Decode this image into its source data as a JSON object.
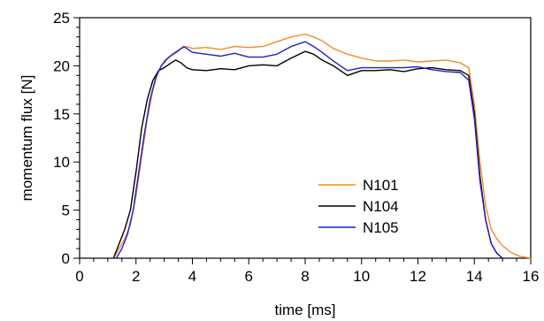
{
  "chart_data": {
    "type": "line",
    "xlabel": "time [ms]",
    "ylabel": "momentum flux [N]",
    "xlim": [
      0,
      16
    ],
    "ylim": [
      0,
      25
    ],
    "xticks": [
      0,
      2,
      4,
      6,
      8,
      10,
      12,
      14,
      16
    ],
    "yticks": [
      0,
      5,
      10,
      15,
      20,
      25
    ],
    "xtick_labels": [
      "0",
      "2",
      "4",
      "6",
      "8",
      "10",
      "12",
      "14",
      "16"
    ],
    "ytick_labels": [
      "0",
      "5",
      "10",
      "15",
      "20",
      "25"
    ],
    "grid": false,
    "legend_position": "lower-right (inside plot)",
    "series": [
      {
        "name": "N101",
        "color": "#f28c28",
        "x": [
          1.2,
          1.4,
          1.6,
          1.8,
          2.0,
          2.2,
          2.4,
          2.6,
          2.8,
          3.0,
          3.2,
          3.4,
          3.6,
          3.8,
          4.0,
          4.5,
          5.0,
          5.5,
          6.0,
          6.5,
          7.0,
          7.5,
          8.0,
          8.3,
          8.6,
          9.0,
          9.5,
          10.0,
          10.5,
          11.0,
          11.5,
          12.0,
          12.5,
          13.0,
          13.5,
          13.8,
          14.0,
          14.2,
          14.4,
          14.6,
          14.8,
          15.0,
          15.3,
          15.6,
          16.0
        ],
        "y": [
          0.0,
          1.0,
          2.0,
          3.5,
          6.5,
          10.5,
          14.5,
          17.5,
          19.5,
          20.5,
          21.0,
          21.3,
          21.8,
          22.0,
          21.8,
          21.9,
          21.7,
          22.0,
          21.9,
          22.0,
          22.5,
          23.0,
          23.3,
          23.0,
          22.6,
          21.8,
          21.2,
          20.8,
          20.5,
          20.5,
          20.6,
          20.4,
          20.5,
          20.6,
          20.3,
          19.8,
          16.0,
          10.0,
          5.5,
          3.0,
          2.0,
          1.3,
          0.6,
          0.2,
          0.0
        ]
      },
      {
        "name": "N104",
        "color": "#000000",
        "x": [
          1.2,
          1.4,
          1.6,
          1.8,
          2.0,
          2.2,
          2.4,
          2.6,
          2.8,
          3.0,
          3.2,
          3.4,
          3.6,
          3.8,
          4.0,
          4.5,
          5.0,
          5.5,
          6.0,
          6.5,
          7.0,
          7.5,
          8.0,
          8.3,
          8.6,
          9.0,
          9.5,
          10.0,
          10.5,
          11.0,
          11.5,
          12.0,
          12.5,
          13.0,
          13.5,
          13.8,
          14.0,
          14.2,
          14.4,
          14.6,
          14.8,
          15.0
        ],
        "y": [
          0.0,
          1.5,
          3.0,
          5.0,
          9.0,
          13.5,
          16.5,
          18.5,
          19.5,
          19.8,
          20.2,
          20.6,
          20.3,
          19.8,
          19.6,
          19.5,
          19.7,
          19.6,
          20.0,
          20.1,
          20.0,
          20.8,
          21.5,
          21.2,
          20.6,
          20.0,
          19.0,
          19.5,
          19.5,
          19.6,
          19.4,
          19.7,
          19.8,
          19.6,
          19.5,
          19.0,
          15.0,
          8.5,
          4.0,
          1.5,
          0.5,
          0.0
        ]
      },
      {
        "name": "N105",
        "color": "#1f1fcc",
        "x": [
          1.3,
          1.5,
          1.7,
          1.9,
          2.1,
          2.3,
          2.5,
          2.7,
          2.9,
          3.1,
          3.3,
          3.5,
          3.7,
          4.0,
          4.5,
          5.0,
          5.5,
          6.0,
          6.5,
          7.0,
          7.5,
          8.0,
          8.3,
          8.6,
          9.0,
          9.5,
          10.0,
          10.5,
          11.0,
          11.5,
          12.0,
          12.5,
          13.0,
          13.5,
          13.8,
          14.0,
          14.2,
          14.4,
          14.6,
          14.8,
          15.0
        ],
        "y": [
          0.0,
          1.0,
          2.5,
          5.0,
          9.0,
          13.0,
          16.5,
          18.8,
          20.0,
          20.7,
          21.2,
          21.6,
          22.0,
          21.4,
          21.2,
          21.0,
          21.3,
          20.9,
          20.9,
          21.2,
          22.0,
          22.5,
          22.0,
          21.4,
          20.5,
          19.5,
          19.8,
          19.8,
          19.8,
          19.8,
          19.9,
          19.6,
          19.4,
          19.3,
          18.5,
          14.5,
          8.0,
          4.0,
          1.5,
          0.5,
          0.0
        ]
      }
    ]
  }
}
